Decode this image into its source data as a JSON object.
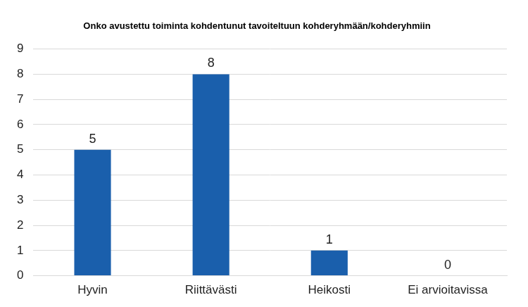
{
  "chart_data": {
    "type": "bar",
    "title": "Onko avustettu toiminta kohdentunut tavoiteltuun kohderyhmään/kohderyhmiin",
    "categories": [
      "Hyvin",
      "Riittävästi",
      "Heikosti",
      "Ei arvioitavissa"
    ],
    "values": [
      5,
      8,
      1,
      0
    ],
    "color": "#1a5fac",
    "ylim": [
      0,
      9
    ],
    "yticks": [
      0,
      1,
      2,
      3,
      4,
      5,
      6,
      7,
      8,
      9
    ],
    "grid": true,
    "data_labels": true
  }
}
